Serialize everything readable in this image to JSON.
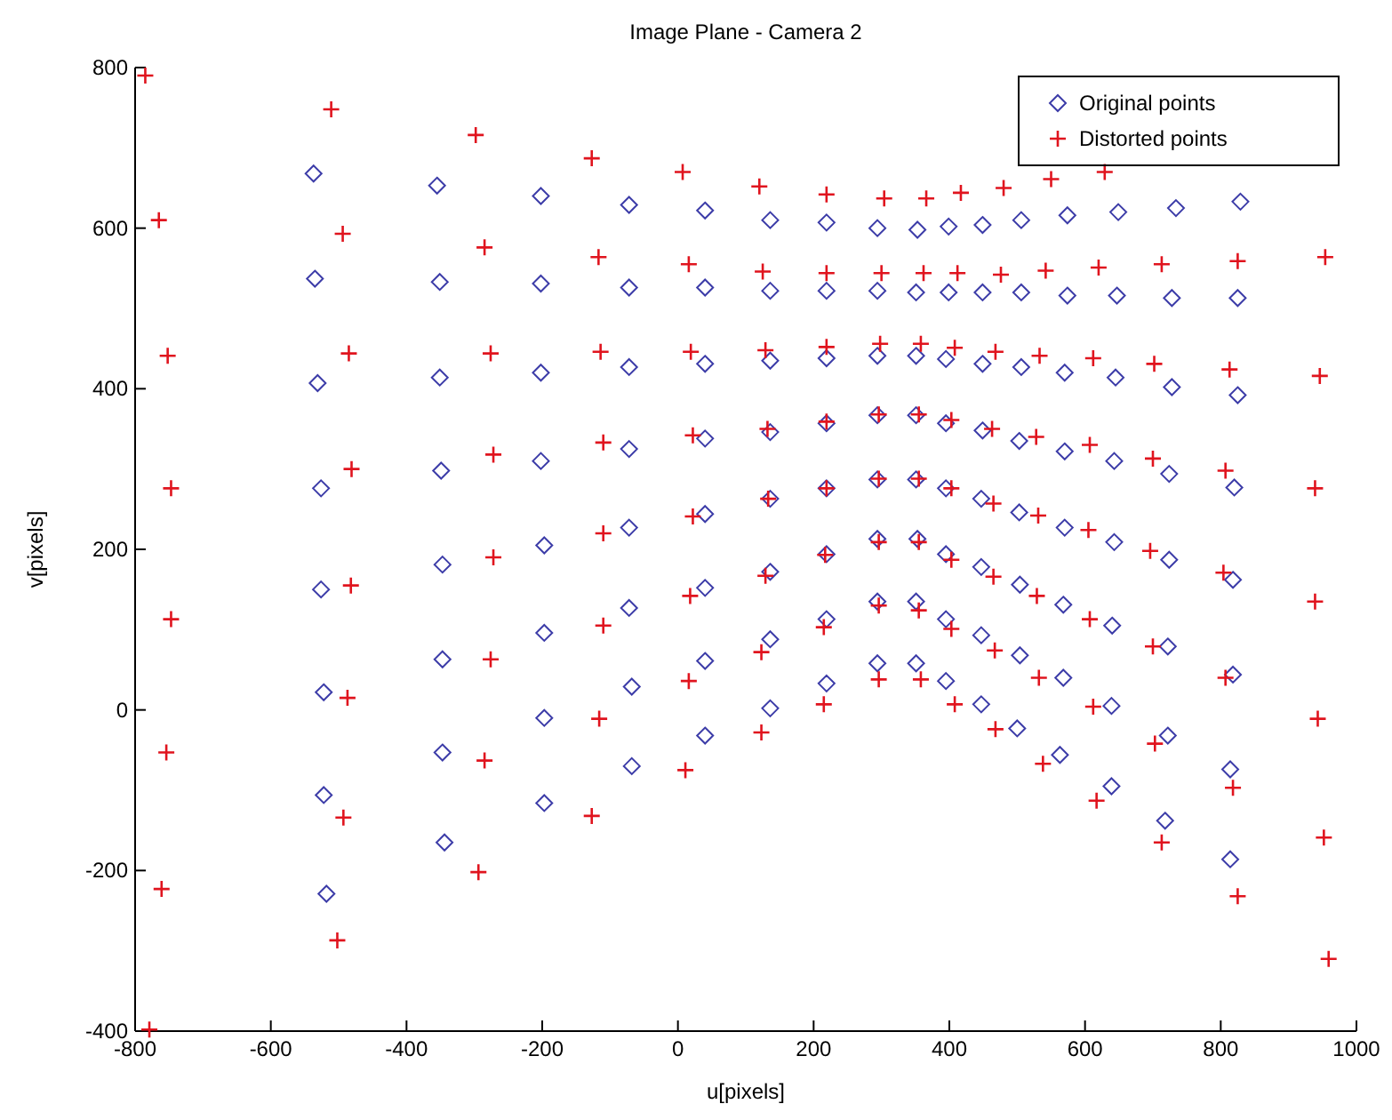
{
  "chart_data": {
    "type": "scatter",
    "title": "Image Plane - Camera 2",
    "xlabel": "u[pixels]",
    "ylabel": "v[pixels]",
    "xlim": [
      -800,
      1000
    ],
    "xticks": [
      -800,
      -600,
      -400,
      -200,
      0,
      200,
      400,
      600,
      800,
      1000
    ],
    "ylim": [
      -400,
      800
    ],
    "yticks": [
      -400,
      -200,
      0,
      200,
      400,
      600,
      800
    ],
    "grid": false,
    "legend": "top right",
    "series": [
      {
        "name": "Original points",
        "color": "#3c3ca8",
        "marker": "diamond",
        "x": [
          -537,
          -535,
          -531,
          -526,
          -526,
          -522,
          -522,
          -518,
          -355,
          -351,
          -351,
          -349,
          -347,
          -347,
          -347,
          -344,
          -202,
          -202,
          -202,
          -202,
          -197,
          -197,
          -197,
          -197,
          -72,
          -72,
          -72,
          -72,
          -72,
          -72,
          -68,
          -68,
          40,
          40,
          40,
          40,
          40,
          40,
          40,
          40,
          136,
          136,
          136,
          136,
          136,
          136,
          136,
          136,
          219,
          219,
          219,
          219,
          219,
          219,
          219,
          219,
          294,
          294,
          294,
          294,
          294,
          294,
          294,
          294,
          353,
          351,
          351,
          351,
          351,
          353,
          351,
          351,
          399,
          399,
          395,
          395,
          395,
          395,
          395,
          395,
          449,
          449,
          449,
          449,
          447,
          447,
          447,
          447,
          506,
          506,
          506,
          503,
          503,
          504,
          504,
          500,
          574,
          574,
          570,
          570,
          570,
          568,
          568,
          563,
          649,
          647,
          645,
          643,
          643,
          640,
          639,
          639,
          734,
          728,
          728,
          724,
          724,
          722,
          722,
          718,
          829,
          825,
          825,
          820,
          818,
          818,
          814,
          814
        ],
        "values": [
          668,
          537,
          407,
          276,
          150,
          22,
          -106,
          -229,
          653,
          533,
          414,
          298,
          181,
          63,
          -53,
          -165,
          640,
          531,
          420,
          310,
          205,
          96,
          -10,
          -116,
          629,
          526,
          427,
          325,
          227,
          127,
          29,
          -70,
          622,
          526,
          431,
          338,
          244,
          152,
          61,
          -32,
          610,
          522,
          435,
          346,
          263,
          172,
          88,
          2,
          607,
          522,
          438,
          357,
          276,
          194,
          113,
          33,
          600,
          522,
          441,
          367,
          287,
          213,
          135,
          58,
          598,
          520,
          441,
          367,
          287,
          213,
          135,
          58,
          602,
          520,
          437,
          357,
          276,
          194,
          113,
          36,
          604,
          520,
          431,
          348,
          263,
          178,
          93,
          7,
          610,
          520,
          427,
          335,
          246,
          156,
          68,
          -23,
          616,
          516,
          420,
          322,
          227,
          131,
          40,
          -56,
          620,
          516,
          414,
          310,
          209,
          105,
          5,
          -95,
          625,
          513,
          402,
          294,
          187,
          79,
          -32,
          -138,
          633,
          513,
          392,
          277,
          162,
          44,
          -74,
          -186
        ]
      },
      {
        "name": "Distorted points",
        "color": "#e0141e",
        "marker": "cross",
        "x": [
          -785,
          -765,
          -752,
          -747,
          -747,
          -754,
          -761,
          -779,
          -511,
          -494,
          -485,
          -481,
          -482,
          -487,
          -493,
          -502,
          -298,
          -285,
          -276,
          -272,
          -272,
          -276,
          -285,
          -294,
          -127,
          -117,
          -114,
          -110,
          -110,
          -110,
          -116,
          -127,
          7,
          16,
          19,
          22,
          22,
          18,
          16,
          11,
          120,
          125,
          129,
          132,
          133,
          129,
          123,
          123,
          219,
          219,
          219,
          219,
          219,
          217,
          215,
          215,
          304,
          300,
          298,
          296,
          296,
          296,
          296,
          296,
          366,
          362,
          358,
          355,
          355,
          355,
          355,
          358,
          417,
          412,
          408,
          403,
          403,
          403,
          403,
          408,
          480,
          476,
          468,
          463,
          465,
          465,
          467,
          468,
          550,
          542,
          533,
          528,
          531,
          529,
          532,
          538,
          629,
          620,
          612,
          607,
          605,
          607,
          612,
          617,
          713,
          702,
          700,
          696,
          700,
          703,
          713,
          825,
          813,
          807,
          804,
          807,
          818,
          825,
          954,
          946,
          939,
          939,
          943,
          952,
          959
        ],
        "values": [
          790,
          610,
          441,
          276,
          113,
          -53,
          -223,
          -398,
          748,
          593,
          444,
          300,
          155,
          15,
          -134,
          -287,
          716,
          576,
          444,
          318,
          190,
          63,
          -63,
          -202,
          687,
          564,
          446,
          333,
          220,
          105,
          -11,
          -132,
          670,
          555,
          446,
          342,
          241,
          142,
          36,
          -75,
          652,
          546,
          448,
          350,
          263,
          167,
          72,
          -28,
          642,
          544,
          452,
          359,
          276,
          193,
          103,
          7,
          637,
          544,
          456,
          368,
          288,
          209,
          130,
          38,
          637,
          544,
          456,
          368,
          288,
          209,
          124,
          38,
          644,
          544,
          451,
          361,
          276,
          187,
          101,
          7,
          650,
          542,
          446,
          350,
          257,
          166,
          74,
          -24,
          661,
          547,
          441,
          340,
          242,
          142,
          40,
          -67,
          670,
          551,
          438,
          330,
          224,
          113,
          4,
          -113,
          555,
          431,
          313,
          198,
          79,
          -42,
          -165,
          559,
          424,
          298,
          171,
          40,
          -97,
          -232,
          564,
          416,
          276,
          135,
          -11,
          -159,
          -310
        ]
      }
    ]
  }
}
